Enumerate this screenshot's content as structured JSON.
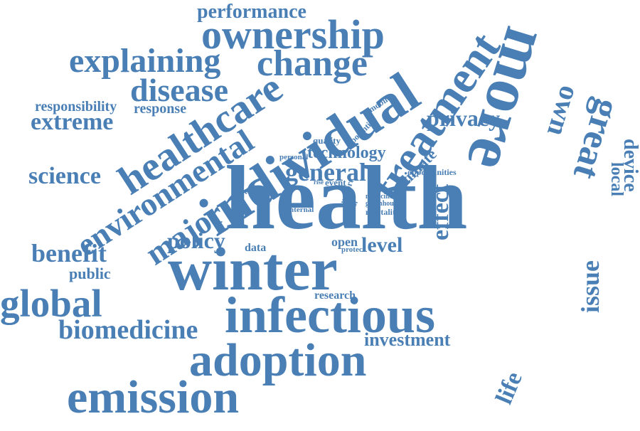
{
  "cloud": {
    "color": "#4a7fb5",
    "words": [
      "performance",
      "ownership",
      "explaining",
      "change",
      "disease",
      "responsibility",
      "response",
      "extreme",
      "science",
      "health",
      "general",
      "technology",
      "privacy",
      "benefit",
      "policy",
      "data",
      "open",
      "level",
      "public",
      "winter",
      "global",
      "infectious",
      "biomedicine",
      "research",
      "investment",
      "adoption",
      "emission",
      "quality",
      "personal",
      "rise",
      "event",
      "opportunities",
      "medicine",
      "greenhouse",
      "internal",
      "mortality",
      "protect",
      "treatment",
      "healthcare",
      "individual",
      "environmental",
      "major",
      "climate",
      "potential",
      "mobile",
      "user",
      "care",
      "support",
      "control",
      "effect",
      "life",
      "issue",
      "more",
      "own",
      "great",
      "local",
      "device"
    ]
  }
}
